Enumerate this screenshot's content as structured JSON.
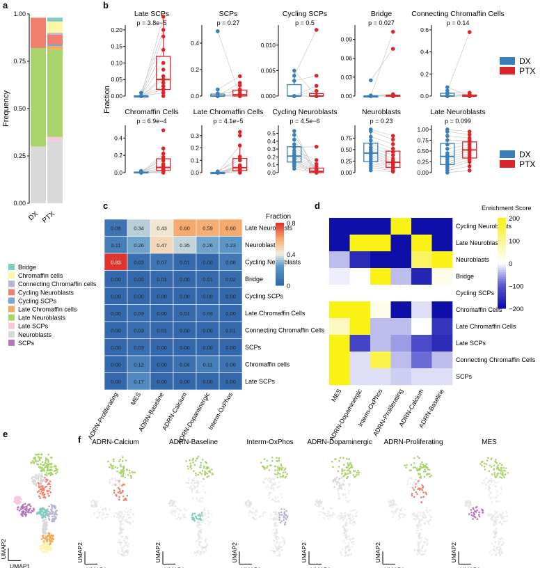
{
  "panel_labels": [
    "a",
    "b",
    "c",
    "d",
    "e",
    "f"
  ],
  "colors": {
    "DX": "#3B7FB8",
    "PTX": "#D9262A",
    "Bridge": "#7ECBC0",
    "Chromaffin cells": "#FDF6A5",
    "Connecting Chromaffin cells": "#B9B3D5",
    "Cycling Neuroblasts": "#F07F6E",
    "Cycling SCPs": "#7AA8CF",
    "Late Chromaffin cells": "#F2AA5D",
    "Late Neuroblasts": "#A9D46B",
    "Late SCPs": "#F7C8E0",
    "Neuroblasts": "#D9D9D9",
    "SCPs": "#B478B8"
  },
  "panel_a": {
    "ylabel": "Frequency",
    "legend": [
      "Bridge",
      "Chromaffin cells",
      "Connecting Chromaffin cells",
      "Cycling Neuroblasts",
      "Cycling SCPs",
      "Late Chromaffin cells",
      "Late Neuroblasts",
      "Late SCPs",
      "Neuroblasts",
      "SCPs"
    ]
  },
  "panel_b": {
    "ylabel": "Fraction",
    "legend": [
      "DX",
      "PTX"
    ],
    "panels": [
      {
        "title": "Late SCPs",
        "p": "p = 3.8e−5",
        "ticks": [
          "0.00",
          "0.05",
          "0.10",
          "0.15",
          "0.20"
        ]
      },
      {
        "title": "SCPs",
        "p": "p = 0.27",
        "ticks": [
          "0.0",
          "0.2",
          "0.4"
        ]
      },
      {
        "title": "Cycling SCPs",
        "p": "p = 0.5",
        "ticks": [
          "0.000",
          "0.005",
          "0.010"
        ]
      },
      {
        "title": "Bridge",
        "p": "p = 0.027",
        "ticks": [
          "0.00",
          "0.03",
          "0.06",
          "0.09"
        ]
      },
      {
        "title": "Connecting Chromaffin Cells",
        "p": "p = 0.14",
        "ticks": [
          "0.0",
          "0.2",
          "0.4",
          "0.6"
        ]
      },
      {
        "title": "Chromaffin Cells",
        "p": "p = 6.9e−4",
        "ticks": [
          "0.0",
          "0.2",
          "0.4"
        ]
      },
      {
        "title": "Late Chromaffin Cells",
        "p": "p = 4.1e−5",
        "ticks": [
          "0.0",
          "0.1",
          "0.2",
          "0.3"
        ]
      },
      {
        "title": "Cycling Neuroblasts",
        "p": "p = 4.5e−6",
        "ticks": [
          "0.0",
          "0.1",
          "0.2",
          "0.3",
          "0.4",
          "0.5"
        ]
      },
      {
        "title": "Neuroblasts",
        "p": "p = 0.23",
        "ticks": [
          "0.00",
          "0.25",
          "0.50",
          "0.75"
        ]
      },
      {
        "title": "Late Neuroblasts",
        "p": "p = 0.099",
        "ticks": [
          "0.00",
          "0.25",
          "0.50",
          "0.75",
          "1.00"
        ]
      }
    ]
  },
  "panel_c": {
    "legend_title": "Fraction",
    "legend_ticks": [
      "0.8",
      "0.4",
      "0"
    ],
    "rows": [
      "Late Neuroblasts",
      "Neuroblasts",
      "Cycling Neuroblasts",
      "Bridge",
      "Cycling SCPs",
      "Late Chromaffin Cells",
      "Connecting Chromaffin Cells",
      "SCPs",
      "Chromaffin cells",
      "Late SCPs"
    ],
    "cols": [
      "ADRN-Proliferating",
      "MES",
      "ADRN-Baseline",
      "ADRN-Calcium",
      "ADRN-Dopaminergic",
      "Interm-OxPhos"
    ]
  },
  "panel_d": {
    "legend_title": "Enrichment Score",
    "legend_ticks": [
      "200",
      "100",
      "0",
      "−100",
      "−200"
    ],
    "rows": [
      "Cycling Neuroblasts",
      "Late Neuroblasts",
      "Neuroblasts",
      "Bridge",
      "Cycling SCPs",
      "Chromaffin Cells",
      "Late Chromaffin Cells",
      "Late SCPs",
      "Connecting Chromaffin Cells",
      "SCPs"
    ],
    "cols": [
      "MES",
      "ADRN-Dopaminergic",
      "Interm-OxPhos",
      "ADRN-Proliferating",
      "ADRN-Calcium",
      "ADRN-Baseline"
    ]
  },
  "panel_f": {
    "titles": [
      "ADRN-Calcium",
      "ADRN-Baseline",
      "Interm-OxPhos",
      "ADRN-Dopaminergic",
      "ADRN-Proliferating",
      "MES"
    ]
  },
  "umap": {
    "x": "UMAP1",
    "y": "UMAP2"
  },
  "chart_data": [
    {
      "type": "bar",
      "categories": [
        "DX",
        "PTX"
      ],
      "ylim": [
        0,
        1
      ],
      "series": [
        {
          "name": "Neuroblasts",
          "values": [
            0.3,
            0.33
          ]
        },
        {
          "name": "Late SCPs",
          "values": [
            0.0,
            0.02
          ]
        },
        {
          "name": "Late Neuroblasts",
          "values": [
            0.52,
            0.46
          ]
        },
        {
          "name": "Late Chromaffin cells",
          "values": [
            0.0,
            0.02
          ]
        },
        {
          "name": "Cycling SCPs",
          "values": [
            0.0,
            0.01
          ]
        },
        {
          "name": "Cycling Neuroblasts",
          "values": [
            0.16,
            0.05
          ]
        },
        {
          "name": "Connecting Chromaffin cells",
          "values": [
            0.0,
            0.01
          ]
        },
        {
          "name": "Chromaffin cells",
          "values": [
            0.0,
            0.06
          ]
        },
        {
          "name": "Bridge",
          "values": [
            0.0,
            0.02
          ]
        }
      ]
    },
    {
      "type": "heatmap",
      "values": [
        [
          0.06,
          0.34,
          0.43,
          0.6,
          0.59,
          0.6
        ],
        [
          0.11,
          0.26,
          0.47,
          0.35,
          0.26,
          0.23
        ],
        [
          0.83,
          0.03,
          0.07,
          0.01,
          0.0,
          0.08
        ],
        [
          0.0,
          0.0,
          0.01,
          0.0,
          0.01,
          0.02
        ],
        [
          0.0,
          0.0,
          0.0,
          0.0,
          0.0,
          0.0
        ],
        [
          0.0,
          0.03,
          0.0,
          0.01,
          0.03,
          0.0
        ],
        [
          0.0,
          0.03,
          0.01,
          0.0,
          0.0,
          0.01
        ],
        [
          0.0,
          0.03,
          0.0,
          0.0,
          0.0,
          0.0
        ],
        [
          0.0,
          0.12,
          0.0,
          0.04,
          0.11,
          0.06
        ],
        [
          0.0,
          0.17,
          0.0,
          0.0,
          0.0,
          0.0
        ]
      ],
      "labels": [
        [
          "0.06",
          "0.34",
          "0.43",
          "0.60",
          "0.59",
          "0.60"
        ],
        [
          "0.11",
          "0.26",
          "0.47",
          "0.35",
          "0.26",
          "0.23"
        ],
        [
          "0.83",
          "0.03",
          "0.07",
          "0.01",
          "0.00",
          "0.08"
        ],
        [
          "0.00",
          "0.00",
          "0.01",
          "0.00",
          "0.01",
          "0.02"
        ],
        [
          "0.00",
          "0.00",
          "0.00",
          "0.00",
          "0.00",
          "0.00"
        ],
        [
          "0.00",
          "0.03",
          "0.00",
          "0.01",
          "0.03",
          "0.00"
        ],
        [
          "0.00",
          "0.03",
          "0.01",
          "0.00",
          "0.00",
          "0.01"
        ],
        [
          "0.00",
          "0.03",
          "0.00",
          "0.00",
          "0.00",
          "0.00"
        ],
        [
          "0.00",
          "0.12",
          "0.00",
          "0.04",
          "0.11",
          "0.06"
        ],
        [
          "0.00",
          "0.17",
          "0.00",
          "0.00",
          "0.00",
          "0.00"
        ]
      ],
      "scale": [
        0,
        0.8
      ]
    },
    {
      "type": "heatmap",
      "values": [
        [
          -200,
          -200,
          -200,
          200,
          -200,
          -200
        ],
        [
          -200,
          200,
          200,
          -200,
          200,
          -200
        ],
        [
          -40,
          -160,
          -200,
          -200,
          140,
          200
        ],
        [
          -10,
          0,
          200,
          -40,
          -170,
          20
        ],
        [
          0,
          0,
          0,
          0,
          0,
          0
        ],
        [
          200,
          200,
          20,
          -200,
          -20,
          -200
        ],
        [
          60,
          200,
          -40,
          -40,
          0,
          -150
        ],
        [
          200,
          -130,
          -40,
          -60,
          -120,
          -160
        ],
        [
          200,
          -20,
          160,
          -40,
          -90,
          -40
        ],
        [
          200,
          -20,
          -20,
          -30,
          -20,
          -20
        ]
      ],
      "scale": [
        -200,
        200
      ]
    },
    {
      "type": "scatter",
      "note": "",
      "groups": [
        {
          "name": "Late SCPs",
          "dx": [
            0.0,
            0.0,
            0.0,
            0.0,
            0.0,
            0.0,
            0.01,
            0.0,
            0.0,
            0.0
          ],
          "ptx": [
            0.03,
            0.05,
            0.01,
            0.02,
            0.1,
            0.14,
            0.2,
            0.24,
            0.18,
            0.06,
            0.01,
            0.0,
            0.02,
            0.04,
            0.08
          ]
        },
        {
          "name": "SCPs",
          "dx": [
            0.0,
            0.0,
            0.0,
            0.0,
            0.0,
            0.0,
            0.05,
            0.02,
            0.0,
            0.49
          ],
          "ptx": [
            0.0,
            0.0,
            0.0,
            0.01,
            0.02,
            0.1,
            0.15,
            0.04,
            0.0,
            0.0,
            0.01,
            0.0,
            0.05,
            0.0,
            0.08
          ]
        },
        {
          "name": "Cycling SCPs",
          "dx": [
            0.0,
            0.0,
            0.0,
            0.0,
            0.0,
            0.003,
            0.004,
            0.005,
            0.0,
            0.0
          ],
          "ptx": [
            0.0,
            0.0,
            0.0,
            0.0,
            0.002,
            0.004,
            0.013,
            0.0,
            0.0,
            0.001,
            0.0,
            0.0,
            0.0,
            0.0,
            0.0
          ]
        },
        {
          "name": "Bridge",
          "dx": [
            0.0,
            0.0,
            0.0,
            0.0,
            0.0,
            0.0,
            0.001,
            0.025,
            0.0,
            0.0
          ],
          "ptx": [
            0.0,
            0.0,
            0.0,
            0.0,
            0.0,
            0.002,
            0.003,
            0.075,
            0.102,
            0.0,
            0.001,
            0.0,
            0.0,
            0.0,
            0.0
          ]
        },
        {
          "name": "Connecting Chromaffin Cells",
          "dx": [
            0.0,
            0.0,
            0.0,
            0.0,
            0.0,
            0.01,
            0.03,
            0.05,
            0.08,
            0.0
          ],
          "ptx": [
            0.0,
            0.0,
            0.0,
            0.0,
            0.01,
            0.02,
            0.03,
            0.58,
            0.0,
            0.0,
            0.01,
            0.0,
            0.0,
            0.0,
            0.0
          ]
        },
        {
          "name": "Chromaffin Cells",
          "dx": [
            0.0,
            0.0,
            0.0,
            0.0,
            0.0,
            0.01,
            0.01,
            0.02,
            0.0,
            0.0
          ],
          "ptx": [
            0.0,
            0.01,
            0.02,
            0.04,
            0.06,
            0.08,
            0.1,
            0.14,
            0.18,
            0.22,
            0.28,
            0.49,
            0.0,
            0.03,
            0.05
          ]
        },
        {
          "name": "Late Chromaffin Cells",
          "dx": [
            0.0,
            0.0,
            0.0,
            0.0,
            0.0,
            0.0,
            0.0,
            0.01,
            0.0,
            0.0
          ],
          "ptx": [
            0.0,
            0.01,
            0.02,
            0.03,
            0.04,
            0.05,
            0.06,
            0.1,
            0.13,
            0.22,
            0.3,
            0.33,
            0.01,
            0.02,
            0.0
          ]
        },
        {
          "name": "Cycling Neuroblasts",
          "dx": [
            0.05,
            0.08,
            0.1,
            0.12,
            0.14,
            0.16,
            0.18,
            0.2,
            0.22,
            0.25,
            0.28,
            0.32,
            0.36,
            0.42,
            0.48,
            0.53
          ],
          "ptx": [
            0.0,
            0.0,
            0.01,
            0.01,
            0.02,
            0.0,
            0.03,
            0.05,
            0.08,
            0.11,
            0.16,
            0.33,
            0.01,
            0.0,
            0.02,
            0.0
          ]
        },
        {
          "name": "Neuroblasts",
          "dx": [
            0.05,
            0.1,
            0.15,
            0.2,
            0.25,
            0.3,
            0.35,
            0.4,
            0.45,
            0.5,
            0.55,
            0.62,
            0.7,
            0.78,
            0.9,
            0.94
          ],
          "ptx": [
            0.02,
            0.05,
            0.08,
            0.1,
            0.12,
            0.15,
            0.18,
            0.2,
            0.25,
            0.3,
            0.38,
            0.45,
            0.52,
            0.62,
            0.72,
            0.8
          ]
        },
        {
          "name": "Late Neuroblasts",
          "dx": [
            0.0,
            0.05,
            0.1,
            0.15,
            0.2,
            0.25,
            0.3,
            0.35,
            0.4,
            0.45,
            0.55,
            0.65,
            0.75,
            0.85,
            0.95,
            1.0
          ],
          "ptx": [
            0.05,
            0.15,
            0.25,
            0.3,
            0.35,
            0.4,
            0.45,
            0.5,
            0.55,
            0.6,
            0.65,
            0.7,
            0.75,
            0.8,
            0.88,
            0.95
          ]
        }
      ]
    }
  ]
}
